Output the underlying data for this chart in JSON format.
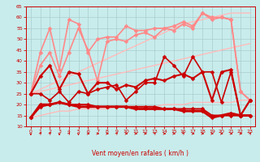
{
  "xlabel": "Vent moyen/en rafales ( km/h )",
  "xlim": [
    -0.5,
    23.5
  ],
  "ylim": [
    10,
    65
  ],
  "yticks": [
    10,
    15,
    20,
    25,
    30,
    35,
    40,
    45,
    50,
    55,
    60,
    65
  ],
  "xticks": [
    0,
    1,
    2,
    3,
    4,
    5,
    6,
    7,
    8,
    9,
    10,
    11,
    12,
    13,
    14,
    15,
    16,
    17,
    18,
    19,
    20,
    21,
    22,
    23
  ],
  "background_color": "#c8ecec",
  "grid_color": "#aacccc",
  "smooth_lines": [
    {
      "y": [
        25,
        26,
        27,
        28,
        29,
        30,
        31,
        32,
        33,
        34,
        35,
        36,
        37,
        38,
        39,
        40,
        41,
        42,
        43,
        44,
        45,
        46,
        47,
        48
      ],
      "color": "#ffbbbb",
      "lw": 1.0,
      "marker": null
    },
    {
      "y": [
        25,
        27,
        29,
        31,
        33,
        35,
        37,
        39,
        41,
        43,
        45,
        47,
        49,
        51,
        53,
        55,
        57,
        58,
        59,
        60,
        61,
        62,
        62,
        62
      ],
      "color": "#ffbbbb",
      "lw": 1.0,
      "marker": null
    },
    {
      "y": [
        14,
        15,
        16,
        17,
        17,
        18,
        18,
        18,
        18,
        19,
        19,
        19,
        19,
        19,
        20,
        20,
        20,
        21,
        21,
        21,
        21,
        21,
        22,
        22
      ],
      "color": "#ffbbbb",
      "lw": 1.0,
      "marker": null
    }
  ],
  "series": [
    {
      "y": [
        14,
        19,
        20,
        21,
        20,
        20,
        20,
        19,
        19,
        19,
        19,
        19,
        19,
        19,
        18,
        18,
        18,
        18,
        18,
        15,
        15,
        15,
        15,
        15
      ],
      "color": "#cc0000",
      "lw": 1.5,
      "marker": "D",
      "markersize": 2.5,
      "zorder": 5
    },
    {
      "y": [
        14,
        20,
        20,
        21,
        20,
        19,
        19,
        19,
        19,
        19,
        19,
        18,
        18,
        18,
        18,
        18,
        17,
        17,
        17,
        14,
        15,
        16,
        15,
        15
      ],
      "color": "#cc0000",
      "lw": 2.0,
      "marker": "D",
      "markersize": 2.5,
      "zorder": 5
    },
    {
      "y": [
        25,
        25,
        22,
        26,
        21,
        26,
        25,
        27,
        28,
        29,
        22,
        26,
        30,
        30,
        42,
        38,
        33,
        42,
        35,
        35,
        21,
        35,
        15,
        22
      ],
      "color": "#cc0000",
      "lw": 1.2,
      "marker": "D",
      "markersize": 2.5,
      "zorder": 5
    },
    {
      "y": [
        25,
        33,
        38,
        27,
        35,
        34,
        25,
        30,
        30,
        27,
        29,
        28,
        31,
        32,
        31,
        33,
        34,
        32,
        35,
        22,
        35,
        36,
        15,
        22
      ],
      "color": "#cc0000",
      "lw": 1.5,
      "marker": "D",
      "markersize": 2.5,
      "zorder": 5
    },
    {
      "y": [
        25,
        38,
        44,
        33,
        44,
        55,
        45,
        31,
        49,
        50,
        49,
        52,
        53,
        51,
        55,
        54,
        57,
        55,
        62,
        59,
        60,
        59,
        26,
        22
      ],
      "color": "#ff8888",
      "lw": 1.2,
      "marker": "D",
      "markersize": 2.5,
      "zorder": 4
    },
    {
      "y": [
        25,
        44,
        55,
        36,
        59,
        57,
        44,
        50,
        51,
        51,
        56,
        54,
        54,
        55,
        55,
        56,
        58,
        56,
        62,
        60,
        60,
        59,
        26,
        22
      ],
      "color": "#ff8888",
      "lw": 1.2,
      "marker": "D",
      "markersize": 2.5,
      "zorder": 4
    }
  ],
  "arrows": {
    "x": [
      0,
      1,
      2,
      3,
      4,
      5,
      6,
      7,
      8,
      9,
      10,
      11,
      12,
      13,
      14,
      15,
      16,
      17,
      18,
      19,
      20,
      21,
      22,
      23
    ],
    "dx": [
      0.0,
      0.7,
      0.7,
      0.0,
      0.7,
      0.0,
      1.0,
      1.0,
      1.0,
      0.7,
      1.0,
      1.0,
      1.0,
      0.7,
      1.0,
      1.0,
      0.7,
      1.0,
      1.0,
      1.0,
      1.0,
      1.0,
      1.0,
      0.7
    ],
    "dy": [
      -1.0,
      0.7,
      0.7,
      -1.0,
      0.7,
      -1.0,
      0.0,
      0.0,
      0.0,
      0.7,
      0.0,
      0.0,
      0.0,
      0.7,
      0.0,
      0.0,
      0.7,
      0.0,
      0.0,
      0.0,
      0.0,
      0.0,
      0.0,
      0.7
    ]
  }
}
